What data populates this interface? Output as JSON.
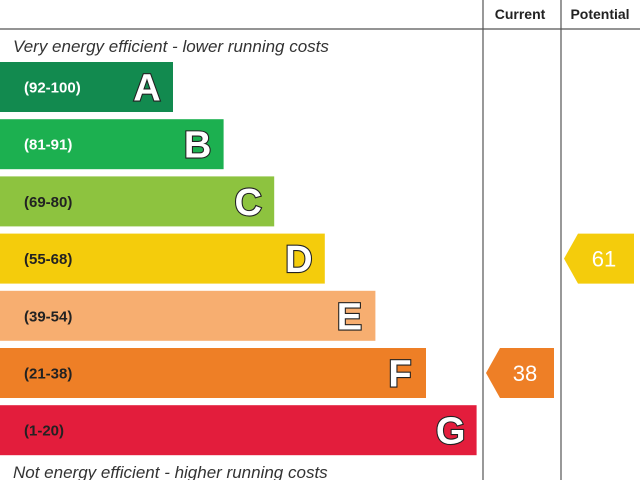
{
  "chart_data": {
    "type": "bar",
    "top_note": "Very energy efficient - lower running costs",
    "bottom_note": "Not energy efficient - higher running costs",
    "columns": [
      "Current",
      "Potential"
    ],
    "bands": [
      {
        "letter": "A",
        "range": "(92-100)",
        "color": "#128a4f",
        "range_color": "#ffffff"
      },
      {
        "letter": "B",
        "range": "(81-91)",
        "color": "#1cb050",
        "range_color": "#ffffff"
      },
      {
        "letter": "C",
        "range": "(69-80)",
        "color": "#8dc33f",
        "range_color": "#222222"
      },
      {
        "letter": "D",
        "range": "(55-68)",
        "color": "#f4cc0c",
        "range_color": "#222222"
      },
      {
        "letter": "E",
        "range": "(39-54)",
        "color": "#f7ae70",
        "range_color": "#222222"
      },
      {
        "letter": "F",
        "range": "(21-38)",
        "color": "#ee7f26",
        "range_color": "#222222"
      },
      {
        "letter": "G",
        "range": "(1-20)",
        "color": "#e31d3c",
        "range_color": "#222222"
      }
    ],
    "ratings": [
      {
        "column": "Current",
        "value": 38,
        "band": "F",
        "color": "#ee7f26"
      },
      {
        "column": "Potential",
        "value": 61,
        "band": "D",
        "color": "#f4cc0c"
      }
    ]
  }
}
